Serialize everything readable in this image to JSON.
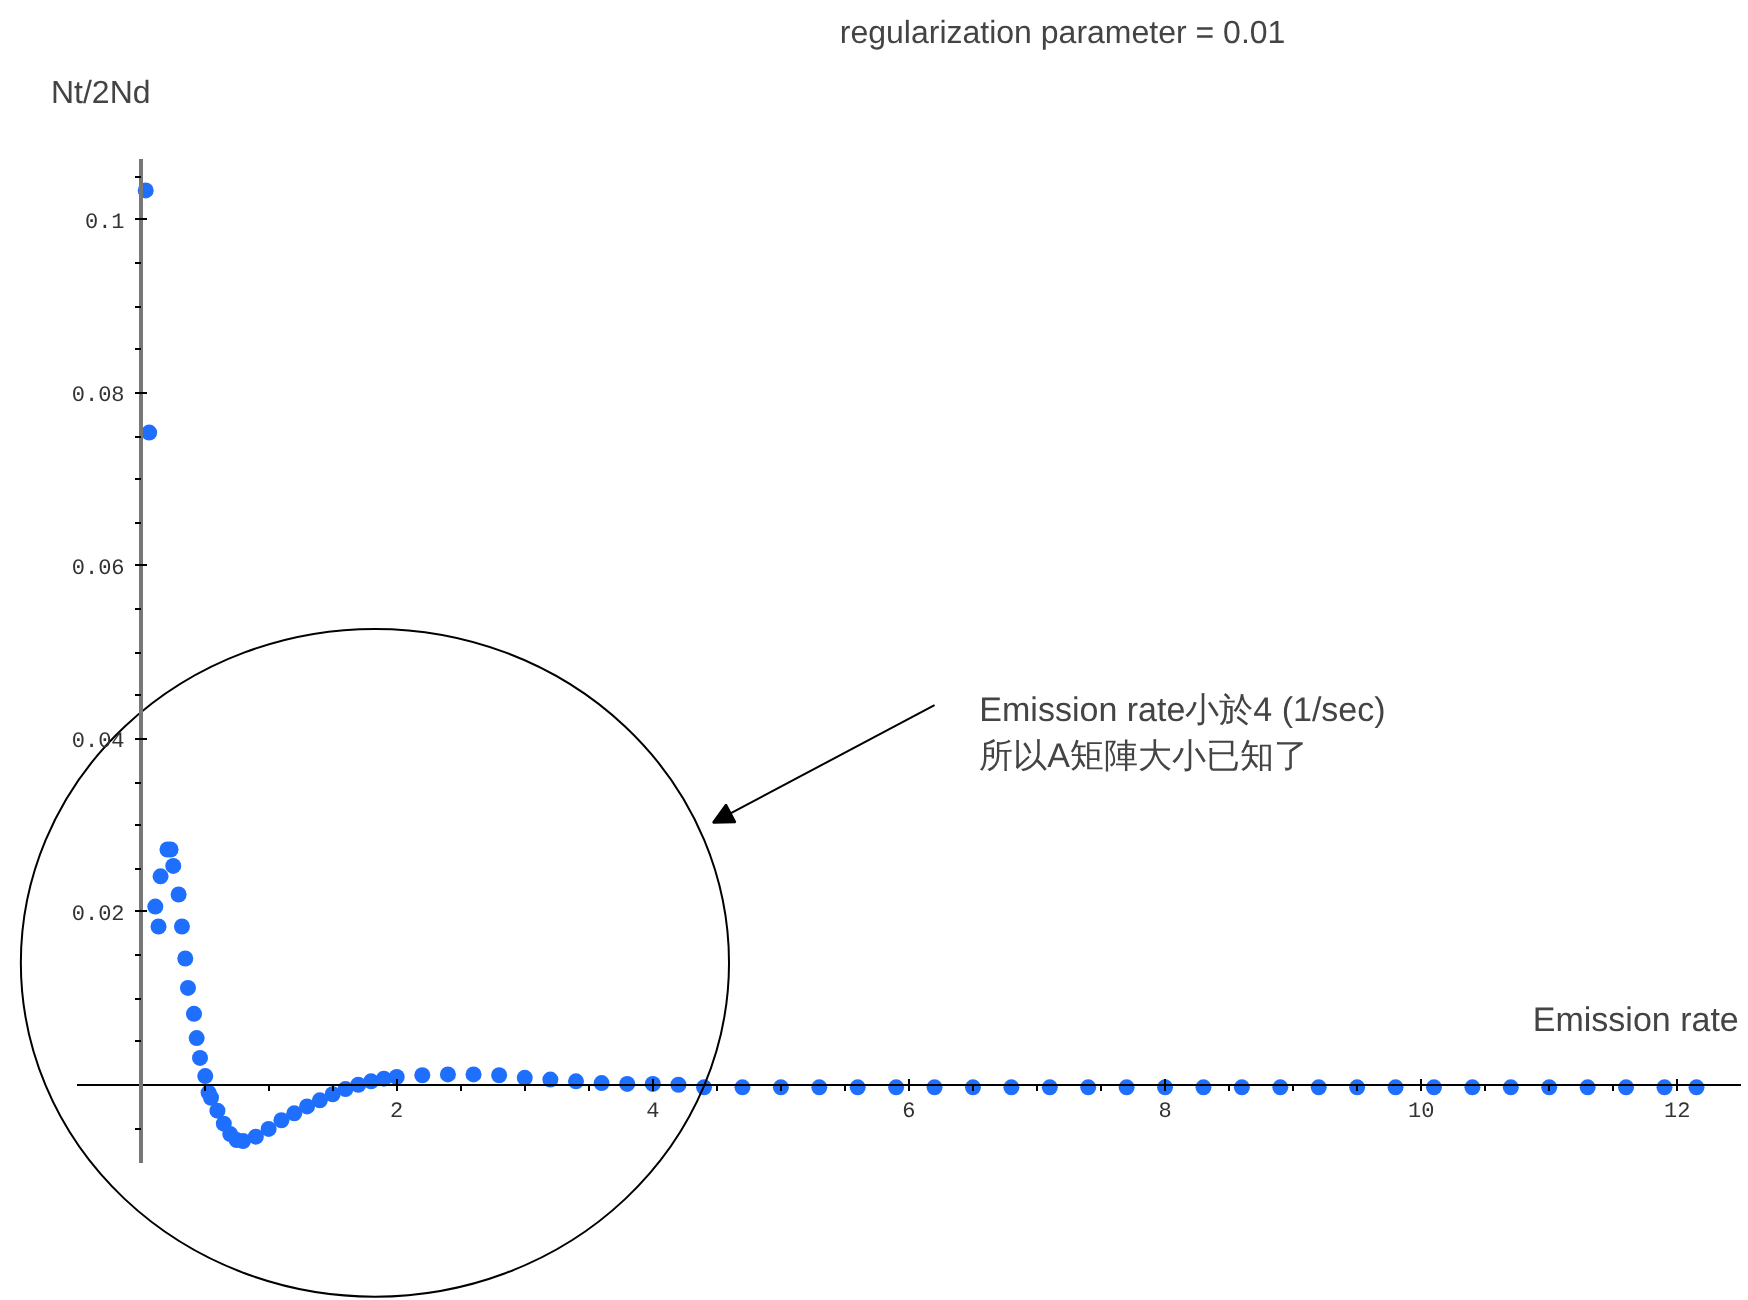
{
  "chart_data": {
    "type": "scatter",
    "title": "regularization parameter = 0.01",
    "xlabel": "Emission rate",
    "ylabel": "Nt/2Nd",
    "annotations": [
      "Emission rate小於4 (1/sec)\n所以A矩陣大小已知了"
    ],
    "marker": "circle",
    "grid": false,
    "xlim": [
      -0.5,
      12.5
    ],
    "ylim": [
      -0.009,
      0.107
    ],
    "xticks": [
      {
        "value": 0.5,
        "label": null
      },
      {
        "value": 1,
        "label": null
      },
      {
        "value": 1.5,
        "label": null
      },
      2,
      {
        "value": 2.5,
        "label": null
      },
      {
        "value": 3,
        "label": null
      },
      {
        "value": 3.5,
        "label": null
      },
      4,
      {
        "value": 4.5,
        "label": null
      },
      {
        "value": 5,
        "label": null
      },
      {
        "value": 5.5,
        "label": null
      },
      6,
      {
        "value": 6.5,
        "label": null
      },
      {
        "value": 7,
        "label": null
      },
      {
        "value": 7.5,
        "label": null
      },
      8,
      {
        "value": 8.5,
        "label": null
      },
      {
        "value": 9,
        "label": null
      },
      {
        "value": 9.5,
        "label": null
      },
      10,
      {
        "value": 10.5,
        "label": null
      },
      {
        "value": 11,
        "label": null
      },
      {
        "value": 11.5,
        "label": null
      },
      12
    ],
    "yticks": [
      {
        "value": -0.005,
        "label": null
      },
      {
        "value": 0.005,
        "label": null
      },
      {
        "value": 0.01,
        "label": null
      },
      {
        "value": 0.015,
        "label": null
      },
      0.02,
      {
        "value": 0.025,
        "label": null
      },
      {
        "value": 0.03,
        "label": null
      },
      {
        "value": 0.035,
        "label": null
      },
      0.04,
      {
        "value": 0.045,
        "label": null
      },
      {
        "value": 0.05,
        "label": null
      },
      {
        "value": 0.055,
        "label": null
      },
      0.06,
      {
        "value": 0.065,
        "label": null
      },
      {
        "value": 0.07,
        "label": null
      },
      {
        "value": 0.075,
        "label": null
      },
      0.08,
      {
        "value": 0.085,
        "label": null
      },
      {
        "value": 0.09,
        "label": null
      },
      {
        "value": 0.095,
        "label": null
      },
      0.1,
      {
        "value": 0.105,
        "label": null
      }
    ],
    "series": [
      {
        "color": "#1f6fff",
        "x": [
          0.04,
          0.067,
          0.115,
          0.14,
          0.156,
          0.21,
          0.234,
          0.255,
          0.297,
          0.323,
          0.349,
          0.37,
          0.417,
          0.438,
          0.464,
          0.505,
          0.531,
          0.55,
          0.6,
          0.65,
          0.7,
          0.75,
          0.8,
          0.9,
          1.0,
          1.1,
          1.2,
          1.3,
          1.4,
          1.5,
          1.6,
          1.7,
          1.8,
          1.9,
          2.0,
          2.2,
          2.4,
          2.6,
          2.8,
          3.0,
          3.2,
          3.4,
          3.6,
          3.8,
          4.0,
          4.2,
          4.4,
          4.7,
          5.0,
          5.3,
          5.6,
          5.9,
          6.2,
          6.5,
          6.8,
          7.1,
          7.4,
          7.7,
          8.0,
          8.3,
          8.6,
          8.9,
          9.2,
          9.5,
          9.8,
          10.1,
          10.4,
          10.7,
          11.0,
          11.3,
          11.6,
          11.9,
          12.15
        ],
        "values": [
          0.1034,
          0.0754,
          0.0206,
          0.0183,
          0.0241,
          0.0272,
          0.0272,
          0.0253,
          0.022,
          0.0183,
          0.0146,
          0.0112,
          0.0082,
          0.0054,
          0.0031,
          0.001,
          -0.0009,
          -0.0015,
          -0.003,
          -0.0045,
          -0.0057,
          -0.0064,
          -0.0065,
          -0.006,
          -0.0051,
          -0.0041,
          -0.0033,
          -0.0025,
          -0.0018,
          -0.0011,
          -0.0005,
          0.0,
          0.0004,
          0.0007,
          0.0009,
          0.0011,
          0.0012,
          0.0012,
          0.0011,
          0.0008,
          0.0006,
          0.0004,
          0.0002,
          0.0001,
          0.0001,
          0.0,
          -0.0003,
          -0.0003,
          -0.0003,
          -0.0003,
          -0.0003,
          -0.0003,
          -0.0003,
          -0.0003,
          -0.0003,
          -0.0003,
          -0.0003,
          -0.0003,
          -0.0003,
          -0.0003,
          -0.0003,
          -0.0003,
          -0.0003,
          -0.0003,
          -0.0003,
          -0.0003,
          -0.0003,
          -0.0003,
          -0.0003,
          -0.0003,
          -0.0003,
          -0.0003,
          -0.0003
        ]
      }
    ]
  }
}
